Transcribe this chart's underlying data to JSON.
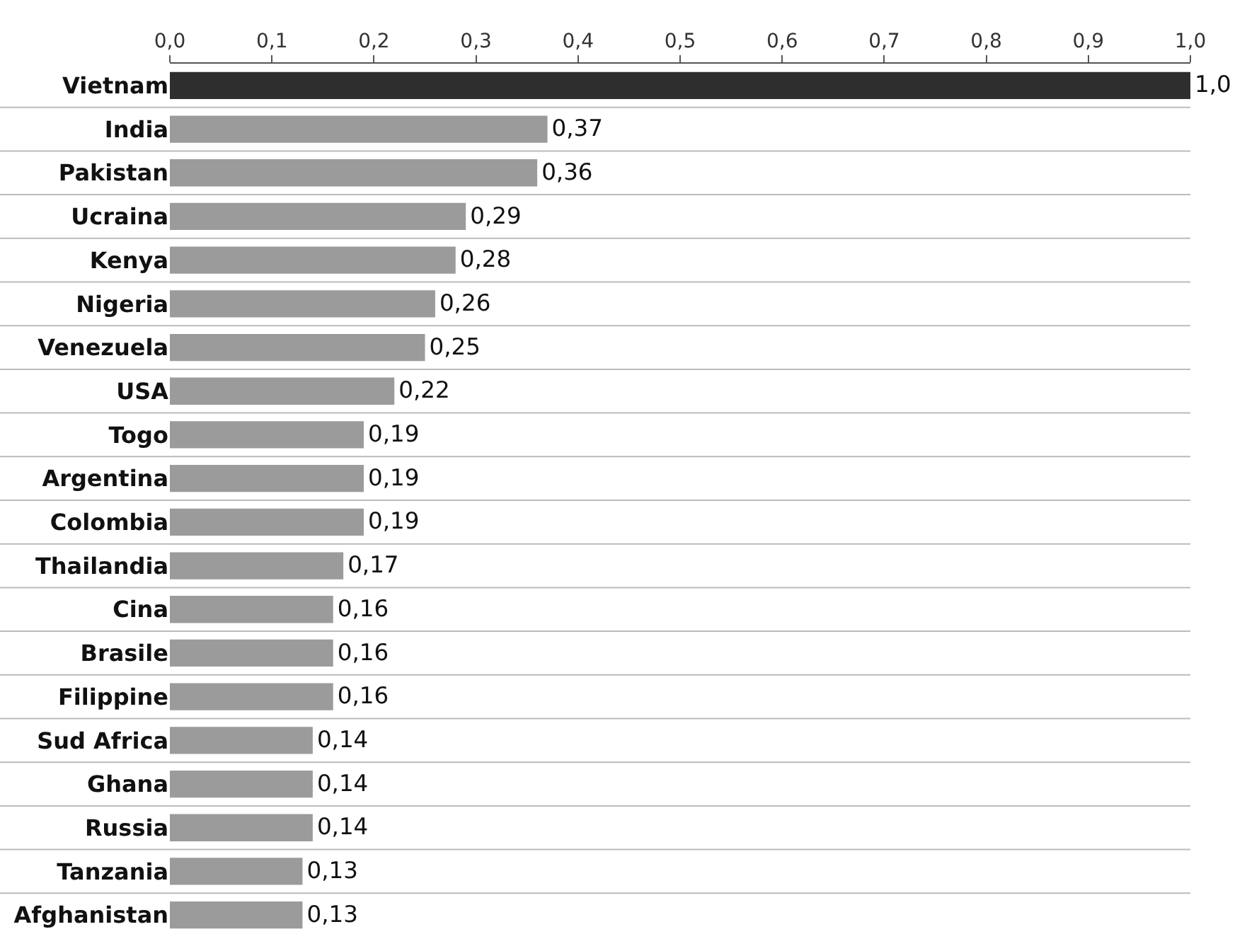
{
  "chart_data": {
    "type": "bar",
    "orientation": "horizontal",
    "categories": [
      "Vietnam",
      "India",
      "Pakistan",
      "Ucraina",
      "Kenya",
      "Nigeria",
      "Venezuela",
      "USA",
      "Togo",
      "Argentina",
      "Colombia",
      "Thailandia",
      "Cina",
      "Brasile",
      "Filippine",
      "Sud Africa",
      "Ghana",
      "Russia",
      "Tanzania",
      "Afghanistan"
    ],
    "values": [
      1.0,
      0.37,
      0.36,
      0.29,
      0.28,
      0.26,
      0.25,
      0.22,
      0.19,
      0.19,
      0.19,
      0.17,
      0.16,
      0.16,
      0.16,
      0.14,
      0.14,
      0.14,
      0.13,
      0.13
    ],
    "value_labels": [
      "1,0",
      "0,37",
      "0,36",
      "0,29",
      "0,28",
      "0,26",
      "0,25",
      "0,22",
      "0,19",
      "0,19",
      "0,19",
      "0,17",
      "0,16",
      "0,16",
      "0,16",
      "0,14",
      "0,14",
      "0,14",
      "0,13",
      "0,13"
    ],
    "colors": [
      "#2e2e2e",
      "#9b9b9b",
      "#9b9b9b",
      "#9b9b9b",
      "#9b9b9b",
      "#9b9b9b",
      "#9b9b9b",
      "#9b9b9b",
      "#9b9b9b",
      "#9b9b9b",
      "#9b9b9b",
      "#9b9b9b",
      "#9b9b9b",
      "#9b9b9b",
      "#9b9b9b",
      "#9b9b9b",
      "#9b9b9b",
      "#9b9b9b",
      "#9b9b9b",
      "#9b9b9b"
    ],
    "xlim": [
      0,
      1.0
    ],
    "xticks": [
      {
        "value": 0,
        "label": "0,0"
      },
      {
        "value": 0.1,
        "label": "0,1"
      },
      {
        "value": 0.2,
        "label": "0,2"
      },
      {
        "value": 0.3,
        "label": "0,3"
      },
      {
        "value": 0.4,
        "label": "0,4"
      },
      {
        "value": 0.5,
        "label": "0,5"
      },
      {
        "value": 0.6,
        "label": "0,6"
      },
      {
        "value": 0.7,
        "label": "0,7"
      },
      {
        "value": 0.8,
        "label": "0,8"
      },
      {
        "value": 0.9,
        "label": "0,9"
      },
      {
        "value": 1.0,
        "label": "1,0"
      }
    ],
    "tick_labels": "xy"
  }
}
